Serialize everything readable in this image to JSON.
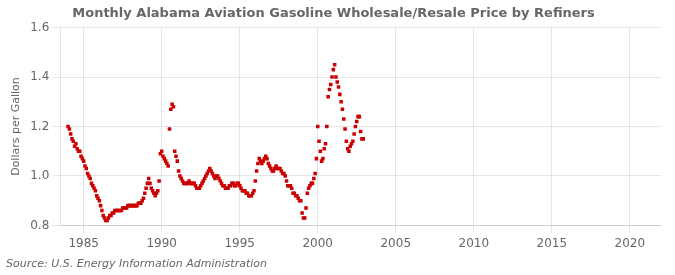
{
  "chart_data": {
    "type": "scatter",
    "title": "Monthly Alabama Aviation Gasoline Wholesale/Resale Price by Refiners",
    "ylabel": "Dollars per Gallon",
    "source": "Source: U.S. Energy Information Administration",
    "color": "#cc0000",
    "marker": "square",
    "grid": true,
    "xlim": [
      1983.5,
      2022
    ],
    "ylim": [
      0.8,
      1.6
    ],
    "xticks": [
      1985,
      1990,
      1995,
      2000,
      2005,
      2010,
      2015,
      2020
    ],
    "yticks": [
      0.8,
      {
        "value": 1,
        "label": "1.0"
      },
      1.2,
      1.4,
      1.6
    ],
    "x": [
      1984,
      1984.0833333333333,
      1984.1666666666667,
      1984.25,
      1984.3333333333333,
      1984.4166666666667,
      1984.5,
      1984.5833333333333,
      1984.6666666666667,
      1984.75,
      1984.8333333333333,
      1984.9166666666667,
      1985,
      1985.0833333333333,
      1985.1666666666667,
      1985.25,
      1985.3333333333333,
      1985.4166666666667,
      1985.5,
      1985.5833333333333,
      1985.6666666666667,
      1985.75,
      1985.8333333333333,
      1985.9166666666667,
      1986,
      1986.0833333333333,
      1986.1666666666667,
      1986.25,
      1986.3333333333333,
      1986.4166666666667,
      1986.5,
      1986.5833333333333,
      1986.6666666666667,
      1986.75,
      1986.8333333333333,
      1986.9166666666667,
      1987,
      1987.0833333333333,
      1987.1666666666667,
      1987.25,
      1987.3333333333333,
      1987.4166666666667,
      1987.5,
      1987.5833333333333,
      1987.6666666666667,
      1987.75,
      1987.8333333333333,
      1987.9166666666667,
      1988,
      1988.0833333333333,
      1988.1666666666667,
      1988.25,
      1988.3333333333333,
      1988.4166666666667,
      1988.5,
      1988.5833333333333,
      1988.6666666666667,
      1988.75,
      1988.8333333333333,
      1988.9166666666667,
      1989,
      1989.0833333333333,
      1989.1666666666667,
      1989.25,
      1989.3333333333333,
      1989.4166666666667,
      1989.5,
      1989.5833333333333,
      1989.6666666666667,
      1989.75,
      1989.8333333333333,
      1989.9166666666667,
      1990,
      1990.0833333333333,
      1990.1666666666667,
      1990.25,
      1990.3333333333333,
      1990.4166666666667,
      1990.5,
      1990.5833333333333,
      1990.6666666666667,
      1990.75,
      1990.8333333333333,
      1990.9166666666667,
      1991,
      1991.0833333333333,
      1991.1666666666667,
      1991.25,
      1991.3333333333333,
      1991.4166666666667,
      1991.5,
      1991.5833333333333,
      1991.6666666666667,
      1991.75,
      1991.8333333333333,
      1991.9166666666667,
      1992,
      1992.0833333333333,
      1992.1666666666667,
      1992.25,
      1992.3333333333333,
      1992.4166666666667,
      1992.5,
      1992.5833333333333,
      1992.6666666666667,
      1992.75,
      1992.8333333333333,
      1992.9166666666667,
      1993,
      1993.0833333333333,
      1993.1666666666667,
      1993.25,
      1993.3333333333333,
      1993.4166666666667,
      1993.5,
      1993.5833333333333,
      1993.6666666666667,
      1993.75,
      1993.8333333333333,
      1993.9166666666667,
      1994,
      1994.0833333333333,
      1994.1666666666667,
      1994.25,
      1994.3333333333333,
      1994.4166666666667,
      1994.5,
      1994.5833333333333,
      1994.6666666666667,
      1994.75,
      1994.8333333333333,
      1994.9166666666667,
      1995,
      1995.0833333333333,
      1995.1666666666667,
      1995.25,
      1995.3333333333333,
      1995.4166666666667,
      1995.5,
      1995.5833333333333,
      1995.6666666666667,
      1995.75,
      1995.8333333333333,
      1995.9166666666667,
      1996,
      1996.0833333333333,
      1996.1666666666667,
      1996.25,
      1996.3333333333333,
      1996.4166666666667,
      1996.5,
      1996.5833333333333,
      1996.6666666666667,
      1996.75,
      1996.8333333333333,
      1996.9166666666667,
      1997,
      1997.0833333333333,
      1997.1666666666667,
      1997.25,
      1997.3333333333333,
      1997.4166666666667,
      1997.5,
      1997.5833333333333,
      1997.6666666666667,
      1997.75,
      1997.8333333333333,
      1997.9166666666667,
      1998,
      1998.0833333333333,
      1998.1666666666667,
      1998.25,
      1998.3333333333333,
      1998.4166666666667,
      1998.5,
      1998.5833333333333,
      1998.6666666666667,
      1998.75,
      1998.8333333333333,
      1998.9166666666667,
      1999,
      1999.0833333333333,
      1999.1666666666667,
      1999.25,
      1999.3333333333333,
      1999.4166666666667,
      1999.5,
      1999.5833333333333,
      1999.6666666666667,
      1999.75,
      1999.8333333333333,
      1999.9166666666667,
      2000,
      2000.0833333333333,
      2000.1666666666667,
      2000.25,
      2000.3333333333333,
      2000.4166666666667,
      2000.5,
      2000.5833333333333,
      2000.6666666666667,
      2000.75,
      2000.8333333333333,
      2000.9166666666667,
      2001,
      2001.0833333333333,
      2001.1666666666667,
      2001.25,
      2001.3333333333333,
      2001.4166666666667,
      2001.5,
      2001.5833333333333,
      2001.6666666666667,
      2001.75,
      2001.8333333333333,
      2001.9166666666667,
      2002,
      2002.0833333333333,
      2002.1666666666667,
      2002.25,
      2002.3333333333333,
      2002.4166666666667,
      2002.5,
      2002.5833333333333,
      2002.6666666666667,
      2002.75,
      2002.8333333333333,
      2002.9166666666667
    ],
    "values": [
      1.2,
      1.19,
      1.17,
      1.15,
      1.14,
      1.12,
      1.13,
      1.11,
      1.1,
      1.1,
      1.08,
      1.07,
      1.06,
      1.04,
      1.03,
      1.01,
      1.0,
      0.99,
      0.97,
      0.96,
      0.95,
      0.94,
      0.92,
      0.91,
      0.9,
      0.88,
      0.86,
      0.84,
      0.83,
      0.82,
      0.82,
      0.83,
      0.84,
      0.84,
      0.85,
      0.85,
      0.86,
      0.86,
      0.86,
      0.86,
      0.86,
      0.86,
      0.87,
      0.87,
      0.87,
      0.87,
      0.88,
      0.88,
      0.88,
      0.88,
      0.88,
      0.88,
      0.88,
      0.88,
      0.89,
      0.89,
      0.89,
      0.9,
      0.91,
      0.93,
      0.95,
      0.97,
      0.99,
      0.97,
      0.95,
      0.94,
      0.93,
      0.92,
      0.93,
      0.94,
      0.98,
      1.09,
      1.1,
      1.08,
      1.07,
      1.06,
      1.05,
      1.04,
      1.19,
      1.27,
      1.29,
      1.28,
      1.1,
      1.08,
      1.06,
      1.02,
      1.0,
      0.99,
      0.98,
      0.97,
      0.97,
      0.97,
      0.97,
      0.98,
      0.97,
      0.97,
      0.97,
      0.97,
      0.96,
      0.95,
      0.95,
      0.95,
      0.96,
      0.97,
      0.98,
      0.99,
      1.0,
      1.01,
      1.02,
      1.03,
      1.02,
      1.01,
      1.0,
      0.99,
      1.0,
      1.0,
      0.99,
      0.98,
      0.97,
      0.96,
      0.96,
      0.95,
      0.95,
      0.95,
      0.96,
      0.96,
      0.97,
      0.97,
      0.96,
      0.96,
      0.97,
      0.97,
      0.96,
      0.95,
      0.94,
      0.94,
      0.94,
      0.93,
      0.93,
      0.92,
      0.92,
      0.92,
      0.93,
      0.94,
      0.98,
      1.02,
      1.05,
      1.07,
      1.06,
      1.05,
      1.06,
      1.07,
      1.08,
      1.07,
      1.05,
      1.04,
      1.03,
      1.02,
      1.02,
      1.03,
      1.04,
      1.03,
      1.03,
      1.03,
      1.02,
      1.01,
      1.01,
      1.0,
      0.98,
      0.96,
      0.96,
      0.96,
      0.95,
      0.93,
      0.93,
      0.92,
      0.92,
      0.91,
      0.9,
      0.9,
      0.85,
      0.83,
      0.83,
      0.87,
      0.93,
      0.95,
      0.96,
      0.97,
      0.97,
      0.99,
      1.01,
      1.07,
      1.2,
      1.14,
      1.1,
      1.06,
      1.07,
      1.11,
      1.13,
      1.2,
      1.32,
      1.35,
      1.37,
      1.4,
      1.43,
      1.45,
      1.4,
      1.38,
      1.36,
      1.33,
      1.3,
      1.27,
      1.23,
      1.19,
      1.14,
      1.11,
      1.1,
      1.12,
      1.13,
      1.14,
      1.17,
      1.2,
      1.22,
      1.24,
      1.24,
      1.18,
      1.15,
      1.15
    ]
  }
}
